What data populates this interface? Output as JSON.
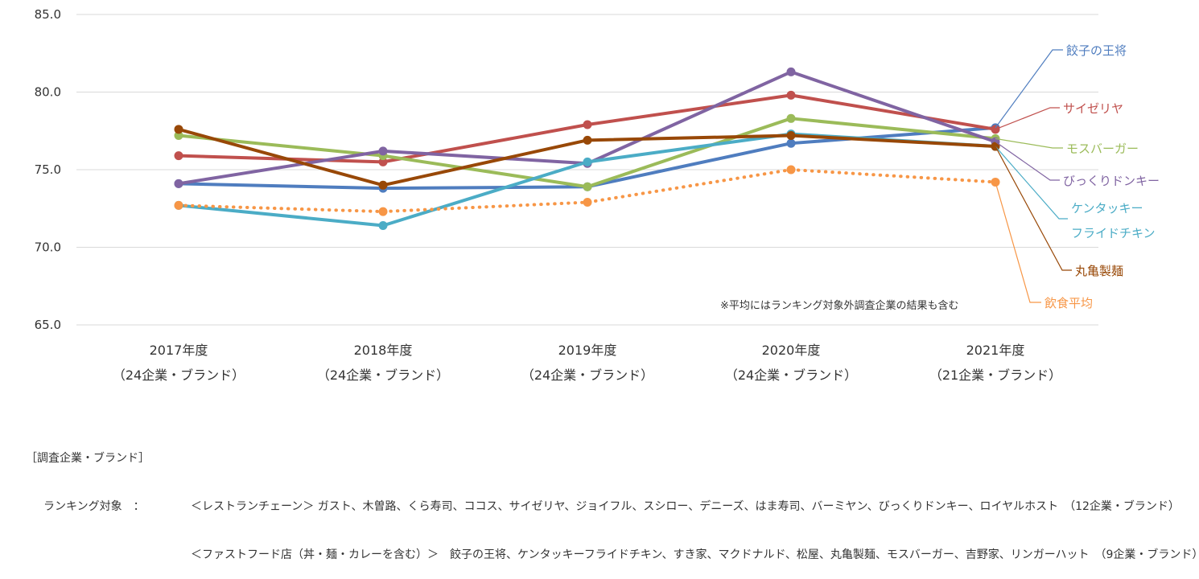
{
  "chart_data": {
    "type": "line",
    "categories": [
      "2017年度",
      "2018年度",
      "2019年度",
      "2020年度",
      "2021年度"
    ],
    "category_sublabels": [
      "（24企業・ブランド）",
      "（24企業・ブランド）",
      "（24企業・ブランド）",
      "（24企業・ブランド）",
      "（21企業・ブランド）"
    ],
    "ylim": [
      65,
      85
    ],
    "yticks": [
      "85.0",
      "80.0",
      "75.0",
      "70.0",
      "65.0"
    ],
    "grid": "horizontal",
    "legend": "right, leader lines to line ends",
    "series": [
      {
        "name": "餃子の王将",
        "color": "#4f7dbf",
        "values": [
          74.1,
          73.8,
          73.9,
          76.7,
          77.7
        ]
      },
      {
        "name": "サイゼリヤ",
        "color": "#c0504d",
        "values": [
          75.9,
          75.5,
          77.9,
          79.8,
          77.6
        ]
      },
      {
        "name": "モスバーガー",
        "color": "#9bbb59",
        "values": [
          77.2,
          75.9,
          73.9,
          78.3,
          77.0
        ]
      },
      {
        "name": "びっくりドンキー",
        "color": "#8064a2",
        "values": [
          74.1,
          76.2,
          75.4,
          81.3,
          76.8
        ]
      },
      {
        "name": "ケンタッキー\nフライドチキン",
        "color": "#4bacc6",
        "values": [
          72.7,
          71.4,
          75.5,
          77.3,
          76.5
        ]
      },
      {
        "name": "丸亀製麺",
        "color": "#984807",
        "values": [
          77.6,
          74.0,
          76.9,
          77.2,
          76.5
        ]
      },
      {
        "name": "飲食平均",
        "color": "#f79646",
        "dashed": true,
        "values": [
          72.7,
          72.3,
          72.9,
          75.0,
          74.2
        ]
      }
    ],
    "annotation": "※平均にはランキング対象外調査企業の結果も含む"
  },
  "footer": {
    "heading": "［調査企業・ブランド］",
    "ranking_label": "ランキング対象　：",
    "line1": "＜レストランチェーン＞ ガスト、木曽路、くら寿司、ココス、サイゼリヤ、ジョイフル、スシロー、デニーズ、はま寿司、バーミヤン、びっくりドンキー、ロイヤルホスト　（12企業・ブランド）",
    "line2": "＜ファストフード店（丼・麺・カレーを含む）＞　餃子の王将、ケンタッキーフライドチキン、すき家、マクドナルド、松屋、丸亀製麺、モスバーガー、吉野家、リンガーハット　（9企業・ブランド）"
  }
}
